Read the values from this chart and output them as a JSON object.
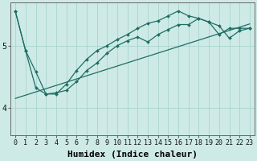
{
  "xlabel": "Humidex (Indice chaleur)",
  "background_color": "#ceeae6",
  "grid_color": "#aad4ce",
  "line_color": "#1e6e64",
  "marker_color": "#1e6e64",
  "xlim": [
    -0.5,
    23.5
  ],
  "ylim": [
    3.55,
    5.7
  ],
  "yticks": [
    4,
    5
  ],
  "xticks": [
    0,
    1,
    2,
    3,
    4,
    5,
    6,
    7,
    8,
    9,
    10,
    11,
    12,
    13,
    14,
    15,
    16,
    17,
    18,
    19,
    20,
    21,
    22,
    23
  ],
  "line1_x": [
    0,
    1,
    2,
    3,
    4,
    5,
    6,
    7,
    8,
    9,
    10,
    11,
    12,
    13,
    14,
    15,
    16,
    17,
    18,
    19,
    20,
    21,
    22,
    23
  ],
  "line1_y": [
    5.55,
    4.92,
    4.32,
    4.22,
    4.24,
    4.28,
    4.42,
    4.6,
    4.72,
    4.88,
    5.0,
    5.08,
    5.14,
    5.06,
    5.18,
    5.26,
    5.34,
    5.34,
    5.44,
    5.38,
    5.32,
    5.12,
    5.24,
    5.28
  ],
  "line2_x": [
    0,
    1,
    2,
    3,
    4,
    5,
    6,
    7,
    8,
    9,
    10,
    11,
    12,
    13,
    14,
    15,
    16,
    17,
    18,
    19,
    20,
    21,
    22,
    23
  ],
  "line2_y": [
    5.55,
    4.92,
    4.58,
    4.22,
    4.22,
    4.38,
    4.6,
    4.78,
    4.92,
    5.0,
    5.1,
    5.18,
    5.28,
    5.36,
    5.4,
    5.48,
    5.56,
    5.48,
    5.44,
    5.38,
    5.18,
    5.28,
    5.28,
    5.28
  ],
  "line3_x": [
    0,
    23
  ],
  "line3_y": [
    4.15,
    5.35
  ],
  "xlabel_fontsize": 8,
  "tick_fontsize": 6,
  "ytick_fontsize": 7
}
